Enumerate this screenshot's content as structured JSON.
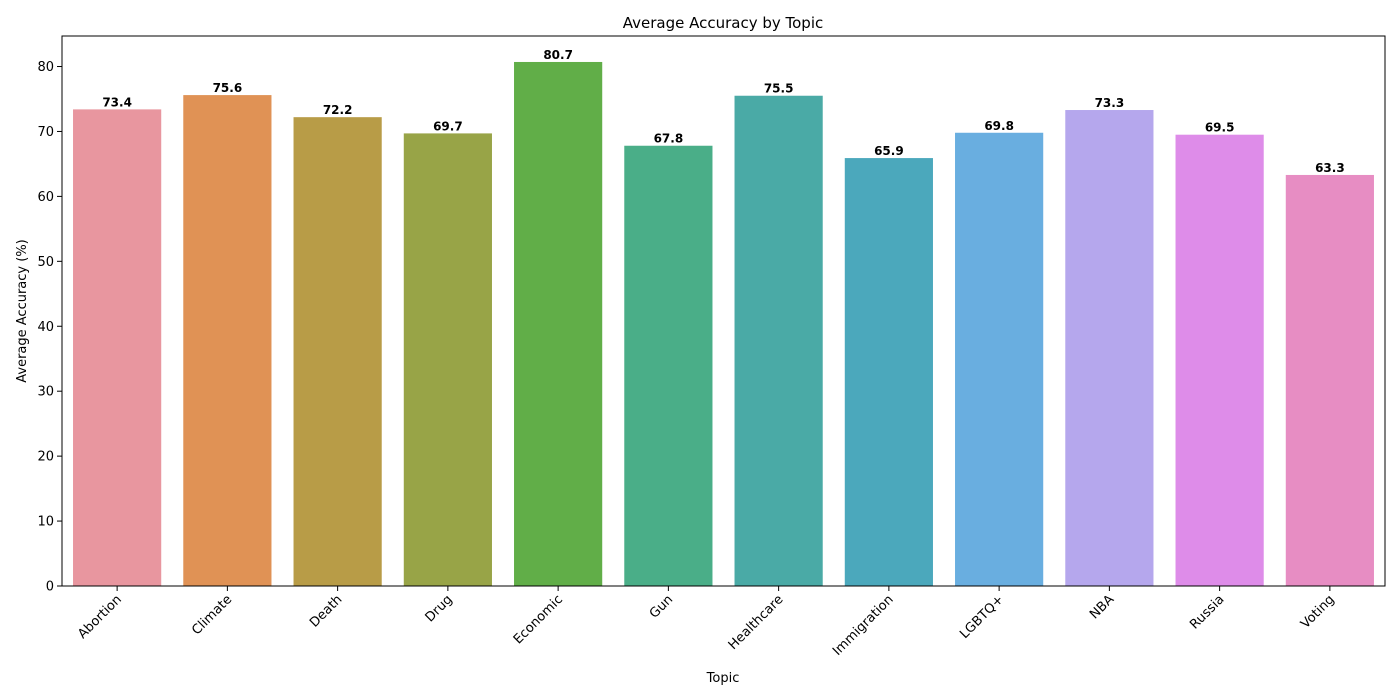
{
  "chart_data": {
    "type": "bar",
    "title": "Average Accuracy by Topic",
    "xlabel": "Topic",
    "ylabel": "Average Accuracy (%)",
    "ylim": [
      0,
      84.7
    ],
    "yticks": [
      0,
      10,
      20,
      30,
      40,
      50,
      60,
      70,
      80
    ],
    "grid": false,
    "categories": [
      "Abortion",
      "Climate",
      "Death",
      "Drug",
      "Economic",
      "Gun",
      "Healthcare",
      "Immigration",
      "LGBTQ+",
      "NBA",
      "Russia",
      "Voting"
    ],
    "values": [
      73.4,
      75.6,
      72.2,
      69.7,
      80.7,
      67.8,
      75.5,
      65.9,
      69.8,
      73.3,
      69.5,
      63.3
    ],
    "value_labels": [
      "73.4",
      "75.6",
      "72.2",
      "69.7",
      "80.7",
      "67.8",
      "75.5",
      "65.9",
      "69.8",
      "73.3",
      "69.5",
      "63.3"
    ],
    "colors": [
      "#e8969f",
      "#e09255",
      "#b89c47",
      "#98a447",
      "#61ae48",
      "#4aae88",
      "#4aaaa6",
      "#4ba8bc",
      "#69aee0",
      "#b5a7ed",
      "#de8ce9",
      "#e78dc3"
    ]
  }
}
